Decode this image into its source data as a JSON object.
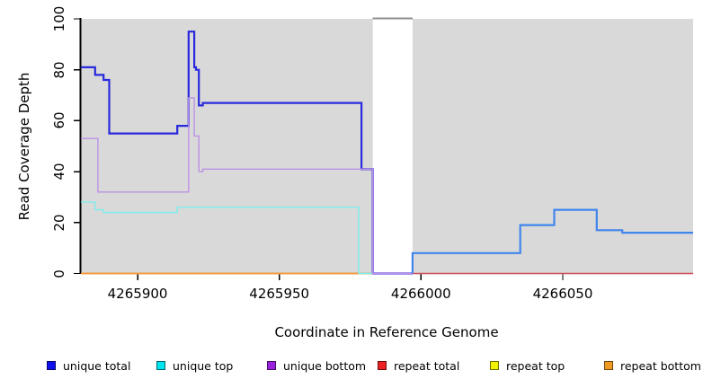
{
  "chart_data": {
    "type": "line",
    "step": true,
    "title": "",
    "xlabel": "Coordinate in Reference Genome",
    "ylabel": "Read Coverage Depth",
    "xlim": [
      4265880,
      4266096
    ],
    "ylim": [
      0,
      100
    ],
    "grid": false,
    "plot_background": "#d9d9d9",
    "x_ticks": [
      {
        "value": 4265900,
        "label": "4265900"
      },
      {
        "value": 4265950,
        "label": "4265950"
      },
      {
        "value": 4266000,
        "label": "4266000"
      },
      {
        "value": 4266050,
        "label": "4266050"
      }
    ],
    "y_ticks": [
      {
        "value": 0,
        "label": "0"
      },
      {
        "value": 20,
        "label": "20"
      },
      {
        "value": 40,
        "label": "40"
      },
      {
        "value": 60,
        "label": "60"
      },
      {
        "value": 80,
        "label": "80"
      },
      {
        "value": 100,
        "label": "100"
      }
    ],
    "gap_region": {
      "x0": 4265983,
      "x1": 4265997,
      "fill": "#ffffff",
      "cap_color": "#8f8f8f",
      "note": "white masked gap in reference with gray clipped line at top"
    },
    "series": [
      {
        "name": "repeat top",
        "color": "#e8e839",
        "width": 1.4,
        "points": [
          [
            4265880,
            0
          ],
          [
            4266096,
            0
          ]
        ]
      },
      {
        "name": "repeat total",
        "color": "#cc4a6e",
        "width": 1.4,
        "points": [
          [
            4265880,
            0
          ],
          [
            4266096,
            0
          ]
        ]
      },
      {
        "name": "repeat bottom",
        "color": "#f79b36",
        "width": 1.8,
        "points": [
          [
            4265880,
            0
          ],
          [
            4265983,
            0
          ]
        ]
      },
      {
        "name": "unique total",
        "part": "left",
        "color": "#2929dd",
        "width": 2.2,
        "points": [
          [
            4265880,
            81
          ],
          [
            4265885,
            78
          ],
          [
            4265888,
            76
          ],
          [
            4265890,
            55
          ],
          [
            4265914,
            58
          ],
          [
            4265918,
            95
          ],
          [
            4265920,
            81
          ],
          [
            4265920.6,
            80
          ],
          [
            4265921.6,
            66
          ],
          [
            4265923,
            67
          ],
          [
            4265979,
            41
          ],
          [
            4265983,
            0
          ],
          [
            4265997,
            0
          ]
        ]
      },
      {
        "name": "unique top",
        "color": "#7deded",
        "width": 1.4,
        "points": [
          [
            4265880,
            28
          ],
          [
            4265885,
            25
          ],
          [
            4265888,
            24
          ],
          [
            4265914,
            26
          ],
          [
            4265978,
            0
          ],
          [
            4265983,
            0
          ]
        ]
      },
      {
        "name": "unique bottom",
        "color": "#bd92e4",
        "width": 1.4,
        "points": [
          [
            4265880,
            53
          ],
          [
            4265886,
            32
          ],
          [
            4265918,
            69
          ],
          [
            4265920,
            54
          ],
          [
            4265921.6,
            40
          ],
          [
            4265923,
            41
          ],
          [
            4265983,
            0
          ],
          [
            4265997,
            0
          ]
        ]
      },
      {
        "name": "unique total",
        "part": "right",
        "color": "#4186ec",
        "width": 2.2,
        "points": [
          [
            4265997,
            0
          ],
          [
            4265997,
            8
          ],
          [
            4266035,
            19
          ],
          [
            4266047,
            25
          ],
          [
            4266062,
            17
          ],
          [
            4266071,
            16
          ],
          [
            4266096,
            16
          ]
        ]
      }
    ],
    "legend_position": "bottom",
    "legend": [
      {
        "label": "unique total",
        "color": "#1111ee"
      },
      {
        "label": "unique top",
        "color": "#00e4ee"
      },
      {
        "label": "unique bottom",
        "color": "#9a22dd"
      },
      {
        "label": "repeat total",
        "color": "#ee2222"
      },
      {
        "label": "repeat top",
        "color": "#f2f200"
      },
      {
        "label": "repeat bottom",
        "color": "#ee9922"
      }
    ]
  }
}
